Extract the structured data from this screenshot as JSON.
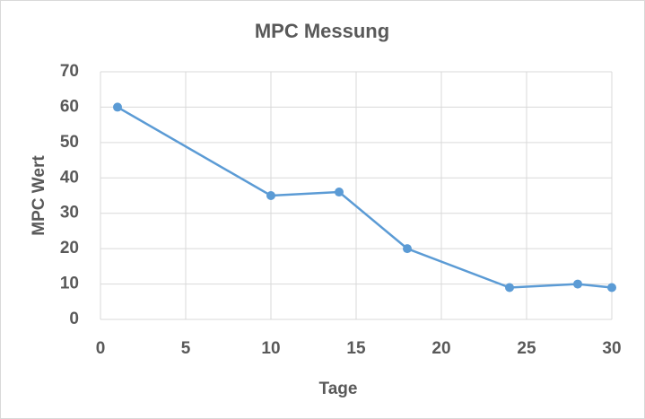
{
  "chart_data": {
    "type": "line",
    "title": "MPC Messung",
    "x_label": "Tage",
    "y_label": "MPC Wert",
    "x": [
      1,
      10,
      14,
      18,
      24,
      28,
      30
    ],
    "series": [
      {
        "color": "#5b9bd5",
        "values": [
          60,
          35,
          36,
          20,
          9,
          10,
          9
        ]
      }
    ],
    "xlim": [
      0,
      30
    ],
    "xticks": [
      0,
      5,
      10,
      15,
      20,
      25,
      30
    ],
    "ylim": [
      0,
      70
    ],
    "yticks": [
      0,
      10,
      20,
      30,
      40,
      50,
      60,
      70
    ],
    "grid": true
  }
}
